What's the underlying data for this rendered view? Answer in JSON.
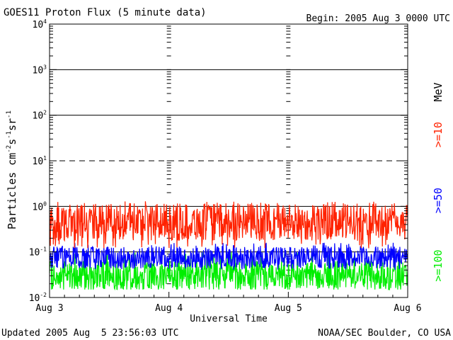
{
  "chart_data": {
    "type": "line",
    "title": "GOES11 Proton Flux (5 minute data)",
    "begin_label": "Begin: 2005 Aug 3 0000 UTC",
    "xlabel": "Universal Time",
    "ylabel": "Particles cm-2s-1sr-1",
    "ylabel_parts": {
      "main": "Particles cm",
      "exp1": "-2",
      "mid1": "s",
      "exp2": "-1",
      "mid2": "sr",
      "exp3": "-1"
    },
    "yscale": "log",
    "ylim": [
      0.01,
      10000
    ],
    "y_ticks": [
      {
        "base": "10",
        "exp": "4",
        "value": 10000
      },
      {
        "base": "10",
        "exp": "3",
        "value": 1000
      },
      {
        "base": "10",
        "exp": "2",
        "value": 100
      },
      {
        "base": "10",
        "exp": "1",
        "value": 10
      },
      {
        "base": "10",
        "exp": "0",
        "value": 1
      },
      {
        "base": "10",
        "exp": "-1",
        "value": 0.1
      },
      {
        "base": "10",
        "exp": "-2",
        "value": 0.01
      }
    ],
    "xlim_days": [
      0,
      3
    ],
    "x_ticks": [
      {
        "label": "Aug 3",
        "day": 0
      },
      {
        "label": "Aug 4",
        "day": 1
      },
      {
        "label": "Aug 5",
        "day": 2
      },
      {
        "label": "Aug 6",
        "day": 3
      }
    ],
    "reference_lines": [
      {
        "value": 1000,
        "style": "solid"
      },
      {
        "value": 100,
        "style": "solid"
      },
      {
        "value": 10,
        "style": "dashed"
      },
      {
        "value": 1,
        "style": "solid"
      },
      {
        "value": 0.1,
        "style": "solid"
      }
    ],
    "series": [
      {
        "name": ">=10 MeV",
        "label": ">=10",
        "color": "#ff2200",
        "typical_value": 0.45,
        "low": 0.12,
        "high": 1.3
      },
      {
        "name": ">=50 MeV",
        "label": ">=50",
        "color": "#0000ff",
        "typical_value": 0.075,
        "low": 0.04,
        "high": 0.16
      },
      {
        "name": ">=100 MeV",
        "label": ">=100",
        "color": "#00ee00",
        "typical_value": 0.03,
        "low": 0.015,
        "high": 0.1
      }
    ],
    "unit_label": "MeV",
    "footer_left": "Updated 2005 Aug  5 23:56:03 UTC",
    "footer_right": "NOAA/SEC Boulder, CO USA"
  }
}
